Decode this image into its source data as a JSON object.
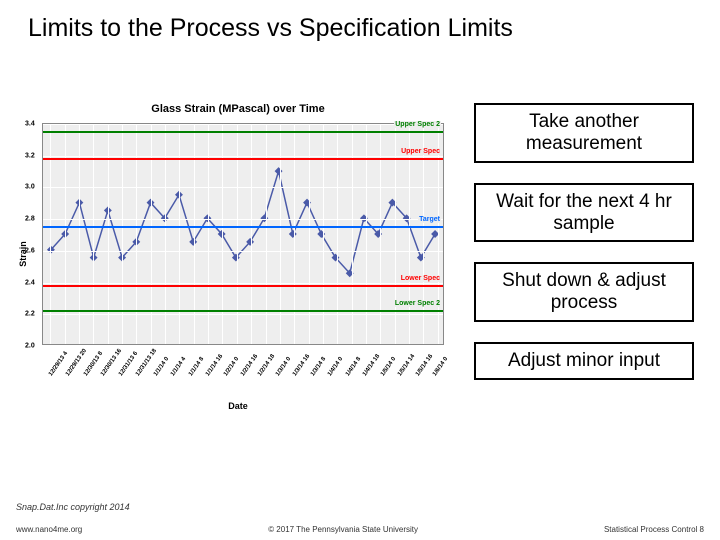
{
  "title": "Limits to the Process vs Specification Limits",
  "chart": {
    "type": "line",
    "title": "Glass Strain (MPascal) over Time",
    "ylabel": "Strain",
    "xlabel": "Date",
    "ylim": [
      2.0,
      3.4
    ],
    "ytick_step": 0.2,
    "yticks": [
      "3.4",
      "3.2",
      "3.0",
      "2.8",
      "2.6",
      "2.4",
      "2.2",
      "2.0"
    ],
    "background_color": "#eeeeee",
    "grid_color": "#ffffff",
    "axis_color": "#888888",
    "title_fontsize": 11,
    "label_fontsize": 9,
    "tick_fontsize": 7,
    "ref_lines": [
      {
        "label": "Upper Spec 2",
        "value": 3.35,
        "color": "#008000"
      },
      {
        "label": "Upper Spec",
        "value": 3.18,
        "color": "#ff0000"
      },
      {
        "label": "Target",
        "value": 2.75,
        "color": "#0066ff"
      },
      {
        "label": "Lower Spec",
        "value": 2.38,
        "color": "#ff0000"
      },
      {
        "label": "Lower Spec 2",
        "value": 2.22,
        "color": "#008000"
      }
    ],
    "series": {
      "color": "#4a5aa8",
      "marker": "diamond",
      "marker_size": 4,
      "line_width": 1.5,
      "values": [
        2.6,
        2.7,
        2.9,
        2.55,
        2.85,
        2.55,
        2.65,
        2.9,
        2.8,
        2.95,
        2.65,
        2.8,
        2.7,
        2.55,
        2.65,
        2.8,
        3.1,
        2.7,
        2.9,
        2.7,
        2.55,
        2.45,
        2.8,
        2.7,
        2.9,
        2.8,
        2.55,
        2.7
      ]
    },
    "x_ticks": [
      "12/29/13 4",
      "12/29/13 20",
      "12/30/13 8",
      "12/30/13 16",
      "12/31/13 6",
      "12/31/13 18",
      "1/1/14 0",
      "1/1/14 4",
      "1/1/14 8",
      "1/1/14 16",
      "1/2/14 0",
      "1/2/14 16",
      "1/2/14 18",
      "1/3/14 0",
      "1/3/14 16",
      "1/3/14 8",
      "1/4/14 0",
      "1/4/14 8",
      "1/4/14 18",
      "1/5/14 0",
      "1/5/14 14",
      "1/5/14 16",
      "1/6/14 0"
    ]
  },
  "options": [
    "Take another measurement",
    "Wait for the next 4 hr sample",
    "Shut down & adjust process",
    "Adjust minor input"
  ],
  "copyright_note": "Snap.Dat.Inc copyright 2014",
  "footer": {
    "left": "www.nano4me.org",
    "center": "© 2017 The Pennsylvania State University",
    "right": "Statistical Process Control 8"
  }
}
